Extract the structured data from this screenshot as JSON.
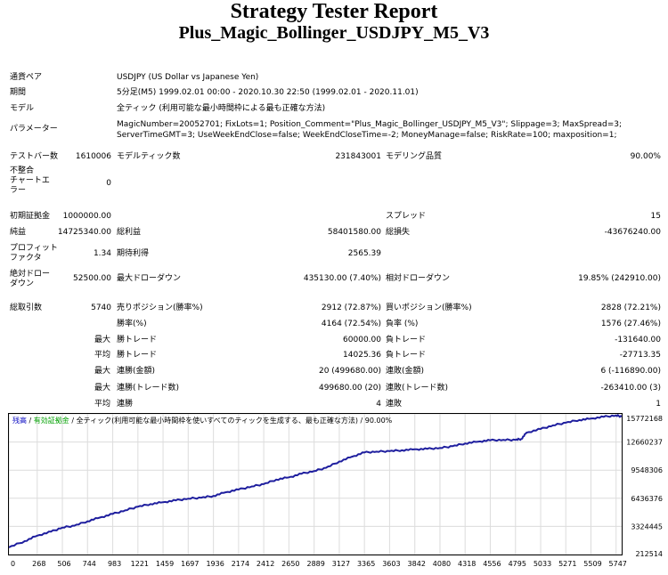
{
  "header": {
    "title": "Strategy Tester Report",
    "subtitle": "Plus_Magic_Bollinger_USDJPY_M5_V3"
  },
  "settings": {
    "symbol_label": "通貨ペア",
    "symbol_value": "USDJPY (US Dollar vs Japanese Yen)",
    "period_label": "期間",
    "period_value": "5分足(M5) 1999.02.01 00:00 - 2020.10.30 22:50 (1999.02.01 - 2020.11.01)",
    "model_label": "モデル",
    "model_value": "全ティック (利用可能な最小時間枠による最も正確な方法)",
    "params_label": "パラメーター",
    "params_line1": "MagicNumber=20052701; FixLots=1; Position_Comment=\"Plus_Magic_Bollinger_USDJPY_M5_V3\"; Slippage=3; MaxSpread=3;",
    "params_line2": "ServerTimeGMT=3; UseWeekEndClose=false; WeekEndCloseTime=-2; MoneyManage=false; RiskRate=100; maxposition=1;"
  },
  "stats": {
    "bars_label": "テストバー数",
    "bars_value": "1610006",
    "ticks_label": "モデルティック数",
    "ticks_value": "231843001",
    "quality_label": "モデリング品質",
    "quality_value": "90.00%",
    "mismatch_label1": "不整合",
    "mismatch_label2": "チャートエ",
    "mismatch_label3": "ラー",
    "mismatch_value": "0",
    "deposit_label": "初期証拠金",
    "deposit_value": "1000000.00",
    "spread_label": "スプレッド",
    "spread_value": "15",
    "netprofit_label": "純益",
    "netprofit_value": "14725340.00",
    "grossprofit_label": "総利益",
    "grossprofit_value": "58401580.00",
    "grossloss_label": "総損失",
    "grossloss_value": "-43676240.00",
    "pf_label1": "プロフィット",
    "pf_label2": "ファクタ",
    "pf_value": "1.34",
    "expected_label": "期待利得",
    "expected_value": "2565.39",
    "absdd_label1": "絶対ドロー",
    "absdd_label2": "ダウン",
    "absdd_value": "52500.00",
    "maxdd_label": "最大ドローダウン",
    "maxdd_value": "435130.00 (7.40%)",
    "reldd_label": "相対ドローダウン",
    "reldd_value": "19.85% (242910.00)",
    "trades_label": "総取引数",
    "trades_value": "5740",
    "short_label": "売りポジション(勝率%)",
    "short_value": "2912 (72.87%)",
    "long_label": "買いポジション(勝率%)",
    "long_value": "2828 (72.21%)",
    "win_label": "勝率(%)",
    "win_value": "4164 (72.54%)",
    "loss_label": "負率 (%)",
    "loss_value": "1576 (27.46%)",
    "max_prefix": "最大",
    "avg_prefix": "平均",
    "largest_win_label": "勝トレード",
    "largest_win_value": "60000.00",
    "largest_loss_label": "負トレード",
    "largest_loss_value": "-131640.00",
    "avg_win_label": "勝トレード",
    "avg_win_value": "14025.36",
    "avg_loss_label": "負トレード",
    "avg_loss_value": "-27713.35",
    "consec_wins_label": "連勝(金額)",
    "consec_wins_value": "20 (499680.00)",
    "consec_losses_label": "連敗(金額)",
    "consec_losses_value": "6 (-116890.00)",
    "consec_profit_label": "連勝(トレード数)",
    "consec_profit_value": "499680.00 (20)",
    "consec_loss_label": "連敗(トレード数)",
    "consec_loss_value": "-263410.00 (3)",
    "avg_consec_wins_label": "連勝",
    "avg_consec_wins_value": "4",
    "avg_consec_losses_label": "連敗",
    "avg_consec_losses_value": "1"
  },
  "chart_legend": {
    "balance": "残高",
    "equity": "有効証拠金",
    "sep1": " / ",
    "model": "全ティック(利用可能な最小時間枠を使いすべてのティックを生成する、最も正確な方法)",
    "sep2": " / ",
    "quality": "90.00%"
  },
  "chart_data": {
    "type": "line",
    "title": "",
    "xlabel": "",
    "ylabel": "",
    "x_ticks": [
      "0",
      "268",
      "506",
      "744",
      "983",
      "1221",
      "1459",
      "1697",
      "1936",
      "2174",
      "2412",
      "2650",
      "2889",
      "3127",
      "3365",
      "3603",
      "3842",
      "4080",
      "4318",
      "4556",
      "4795",
      "5033",
      "5271",
      "5509",
      "5747"
    ],
    "y_ticks": [
      "212514",
      "3324445",
      "6436376",
      "9548306",
      "12660237",
      "15772168"
    ],
    "xlim": [
      0,
      5800
    ],
    "ylim": [
      212514,
      15772168
    ],
    "grid": true,
    "colors": {
      "balance": "#1e1e9e",
      "grid": "#dcdcdc"
    },
    "series": [
      {
        "name": "残高",
        "x": [
          0,
          150,
          268,
          400,
          506,
          620,
          744,
          860,
          983,
          1100,
          1221,
          1340,
          1459,
          1580,
          1697,
          1820,
          1936,
          2050,
          2174,
          2300,
          2412,
          2530,
          2650,
          2770,
          2889,
          3000,
          3127,
          3250,
          3365,
          3480,
          3603,
          3720,
          3842,
          3960,
          4080,
          4200,
          4318,
          4440,
          4556,
          4680,
          4795,
          4850,
          4900,
          5033,
          5150,
          5271,
          5400,
          5509,
          5630,
          5747,
          5800
        ],
        "y": [
          1000000,
          1700000,
          2300000,
          2750000,
          3200000,
          3400000,
          3900000,
          4300000,
          4700000,
          5100000,
          5500000,
          5800000,
          6000000,
          6200000,
          6400000,
          6500000,
          6700000,
          7100000,
          7400000,
          7750000,
          8000000,
          8500000,
          8750000,
          9150000,
          9450000,
          9800000,
          10500000,
          11050000,
          11500000,
          11600000,
          11650000,
          11750000,
          11850000,
          11900000,
          12000000,
          12200000,
          12500000,
          12700000,
          12850000,
          12900000,
          12900000,
          13000000,
          13700000,
          14100000,
          14500000,
          14800000,
          15100000,
          15250000,
          15450000,
          15600000,
          15480000
        ]
      }
    ]
  }
}
